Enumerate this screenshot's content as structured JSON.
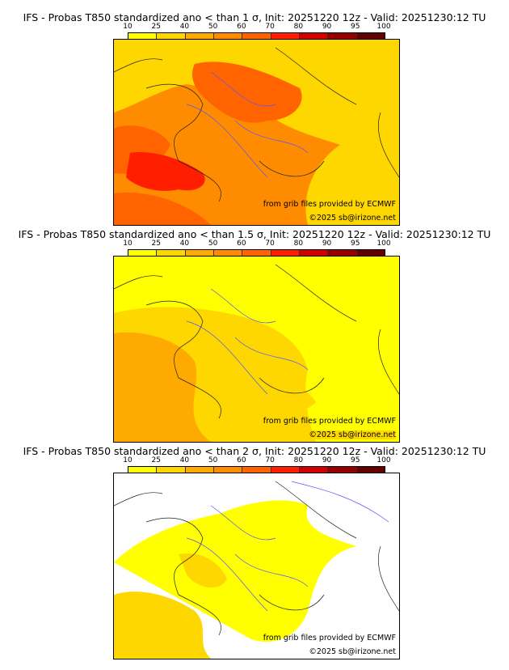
{
  "colorbar": {
    "ticks": [
      "10",
      "25",
      "40",
      "50",
      "60",
      "70",
      "80",
      "90",
      "95",
      "100"
    ],
    "colors": [
      "#ffff00",
      "#ffd700",
      "#ffaa00",
      "#ff8c00",
      "#ff6400",
      "#ff1e00",
      "#d20000",
      "#960000",
      "#640000"
    ]
  },
  "panels": [
    {
      "title": "IFS - Probas T850  standardized ano < than 1 σ, Init: 20251220 12z - Valid: 20251230:12 TU",
      "credit_source": "from grib files provided by ECMWF",
      "credit_copy": "©2025 sb@irizone.net"
    },
    {
      "title": "IFS - Probas T850  standardized ano < than 1.5 σ, Init: 20251220 12z - Valid: 20251230:12 TU",
      "credit_source": "from grib files provided by ECMWF",
      "credit_copy": "©2025 sb@irizone.net"
    },
    {
      "title": "IFS - Probas T850  standardized ano < than 2 σ, Init: 20251220 12z - Valid: 20251230:12 TU",
      "credit_source": "from grib files provided by ECMWF",
      "credit_copy": "©2025 sb@irizone.net"
    }
  ]
}
